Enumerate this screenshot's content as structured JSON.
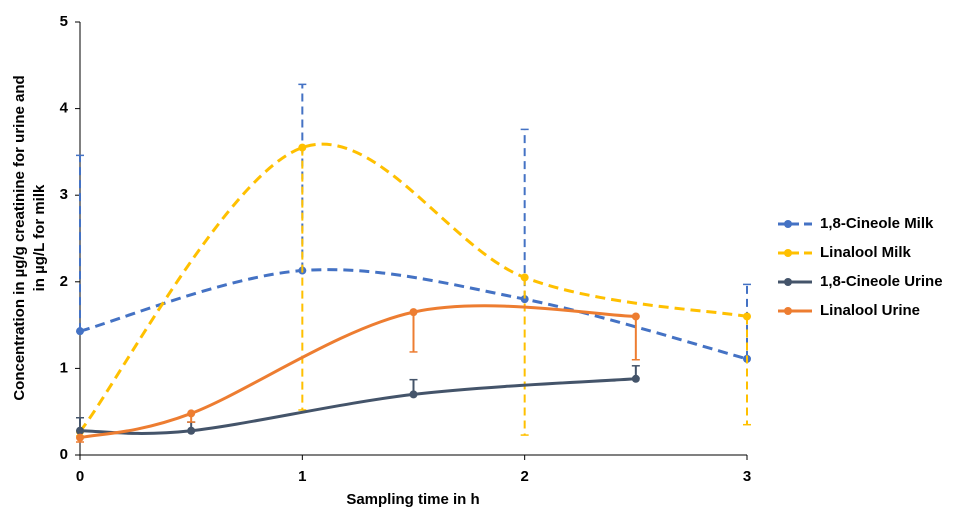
{
  "chart_data": {
    "type": "line",
    "xlabel": "Sampling time in h",
    "ylabel": [
      "Concentration in µg/g creatinine for urine and",
      "in µg/L for milk"
    ],
    "xlim": [
      0,
      3
    ],
    "xticks": [
      0,
      1,
      2,
      3
    ],
    "ylim": [
      0,
      5
    ],
    "yticks": [
      0,
      1,
      2,
      3,
      4,
      5
    ],
    "grid": false,
    "smooth": true,
    "legend": "right",
    "series": [
      {
        "name": "1,8-Cineole Milk",
        "color": "#4472c4",
        "dashed": true,
        "error_bars": "up",
        "x": [
          0,
          1,
          2,
          3
        ],
        "values": [
          1.43,
          2.13,
          1.8,
          1.11
        ],
        "errors": [
          2.03,
          2.15,
          1.96,
          0.86
        ]
      },
      {
        "name": "Linalool Milk",
        "color": "#ffc000",
        "dashed": true,
        "error_bars": "down",
        "x": [
          0,
          1,
          2,
          3
        ],
        "values": [
          0.27,
          3.55,
          2.05,
          1.6
        ],
        "errors": [
          0.05,
          3.03,
          1.82,
          1.25
        ]
      },
      {
        "name": "1,8-Cineole Urine",
        "color": "#44546a",
        "dashed": false,
        "error_bars": "up",
        "x": [
          0,
          0.5,
          1.5,
          2.5
        ],
        "values": [
          0.28,
          0.28,
          0.7,
          0.88
        ],
        "errors": [
          0.15,
          0.1,
          0.17,
          0.15
        ]
      },
      {
        "name": "Linalool Urine",
        "color": "#ed7d31",
        "dashed": false,
        "error_bars": "down",
        "x": [
          0,
          0.5,
          1.5,
          2.5
        ],
        "values": [
          0.2,
          0.48,
          1.65,
          1.6
        ],
        "errors": [
          0.05,
          0.1,
          0.46,
          0.5
        ]
      }
    ]
  }
}
